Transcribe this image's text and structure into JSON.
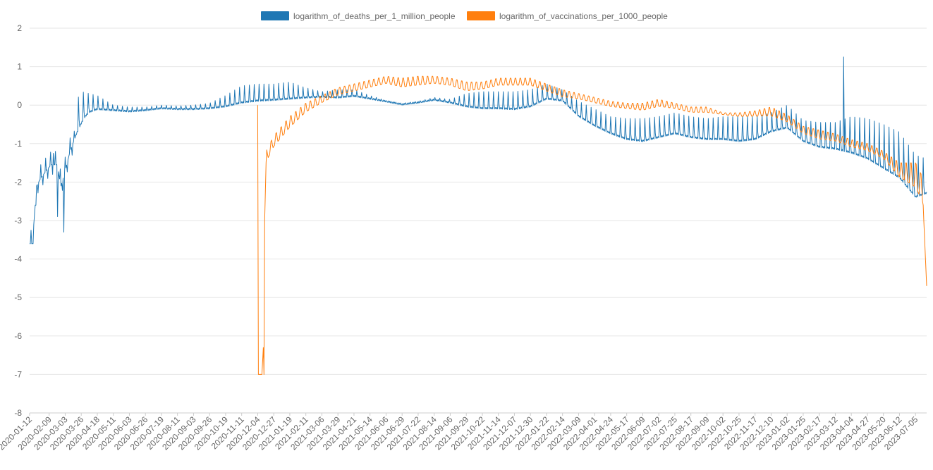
{
  "chart_data": {
    "type": "line",
    "title": "",
    "xlabel": "",
    "ylabel": "",
    "ylim": [
      -8,
      2
    ],
    "yticks": [
      2,
      1,
      0,
      -1,
      -2,
      -3,
      -4,
      -5,
      -6,
      -7,
      -8
    ],
    "grid": "horizontal",
    "legend_position": "top-center",
    "xlim": [
      "2020-01-12",
      "2023-07-21"
    ],
    "x_tick_labels": [
      "2020-01-12",
      "2020-02-09",
      "2020-03-03",
      "2020-03-26",
      "2020-04-18",
      "2020-05-11",
      "2020-06-03",
      "2020-06-26",
      "2020-07-19",
      "2020-08-11",
      "2020-09-03",
      "2020-09-26",
      "2020-10-19",
      "2020-11-11",
      "2020-12-04",
      "2020-12-27",
      "2021-01-19",
      "2021-02-11",
      "2021-03-06",
      "2021-03-29",
      "2021-04-21",
      "2021-05-14",
      "2021-06-06",
      "2021-06-29",
      "2021-07-22",
      "2021-08-14",
      "2021-09-06",
      "2021-09-29",
      "2021-10-22",
      "2021-11-14",
      "2021-12-07",
      "2021-12-30",
      "2022-01-22",
      "2022-02-14",
      "2022-03-09",
      "2022-04-01",
      "2022-04-24",
      "2022-05-17",
      "2022-06-09",
      "2022-07-02",
      "2022-07-25",
      "2022-08-17",
      "2022-09-09",
      "2022-10-02",
      "2022-10-25",
      "2022-11-17",
      "2022-12-10",
      "2023-01-02",
      "2023-01-25",
      "2023-02-17",
      "2023-03-12",
      "2023-04-04",
      "2023-04-27",
      "2023-05-20",
      "2023-06-12",
      "2023-07-05"
    ],
    "series": [
      {
        "name": "logarithm_of_deaths_per_1_million_people",
        "color": "#1f77b4",
        "baseline_points": [
          [
            "2020-01-12",
            -3.6
          ],
          [
            "2020-01-16",
            -3.6
          ],
          [
            "2020-01-22",
            -2.1
          ],
          [
            "2020-01-28",
            -1.9
          ],
          [
            "2020-02-05",
            -1.7
          ],
          [
            "2020-02-12",
            -1.55
          ],
          [
            "2020-02-20",
            -1.55
          ],
          [
            "2020-02-26",
            -2.1
          ],
          [
            "2020-03-03",
            -1.7
          ],
          [
            "2020-03-10",
            -1.2
          ],
          [
            "2020-03-16",
            -0.9
          ],
          [
            "2020-03-23",
            -0.6
          ],
          [
            "2020-03-30",
            -0.35
          ],
          [
            "2020-04-06",
            -0.2
          ],
          [
            "2020-04-18",
            -0.12
          ],
          [
            "2020-05-11",
            -0.15
          ],
          [
            "2020-06-03",
            -0.18
          ],
          [
            "2020-06-26",
            -0.15
          ],
          [
            "2020-07-19",
            -0.1
          ],
          [
            "2020-08-11",
            -0.12
          ],
          [
            "2020-09-03",
            -0.12
          ],
          [
            "2020-09-26",
            -0.1
          ],
          [
            "2020-10-19",
            -0.05
          ],
          [
            "2020-11-11",
            0.05
          ],
          [
            "2020-12-04",
            0.1
          ],
          [
            "2020-12-27",
            0.12
          ],
          [
            "2021-01-19",
            0.15
          ],
          [
            "2021-02-11",
            0.18
          ],
          [
            "2021-03-06",
            0.2
          ],
          [
            "2021-03-29",
            0.18
          ],
          [
            "2021-04-21",
            0.22
          ],
          [
            "2021-05-14",
            0.15
          ],
          [
            "2021-06-06",
            0.08
          ],
          [
            "2021-06-29",
            0.0
          ],
          [
            "2021-07-22",
            0.05
          ],
          [
            "2021-08-14",
            0.12
          ],
          [
            "2021-09-06",
            0.05
          ],
          [
            "2021-09-29",
            -0.05
          ],
          [
            "2021-10-22",
            -0.1
          ],
          [
            "2021-11-14",
            -0.1
          ],
          [
            "2021-12-07",
            -0.12
          ],
          [
            "2021-12-30",
            -0.05
          ],
          [
            "2022-01-22",
            0.15
          ],
          [
            "2022-02-14",
            0.1
          ],
          [
            "2022-03-09",
            -0.3
          ],
          [
            "2022-04-01",
            -0.55
          ],
          [
            "2022-04-24",
            -0.75
          ],
          [
            "2022-05-17",
            -0.9
          ],
          [
            "2022-06-09",
            -0.95
          ],
          [
            "2022-07-02",
            -0.85
          ],
          [
            "2022-07-25",
            -0.75
          ],
          [
            "2022-08-17",
            -0.85
          ],
          [
            "2022-09-09",
            -0.9
          ],
          [
            "2022-10-02",
            -0.9
          ],
          [
            "2022-10-25",
            -0.95
          ],
          [
            "2022-11-17",
            -0.9
          ],
          [
            "2022-12-10",
            -0.7
          ],
          [
            "2023-01-02",
            -0.6
          ],
          [
            "2023-01-25",
            -0.95
          ],
          [
            "2023-02-17",
            -1.1
          ],
          [
            "2023-03-12",
            -1.15
          ],
          [
            "2023-04-04",
            -1.25
          ],
          [
            "2023-04-27",
            -1.4
          ],
          [
            "2023-05-20",
            -1.65
          ],
          [
            "2023-06-12",
            -1.9
          ],
          [
            "2023-07-05",
            -2.4
          ],
          [
            "2023-07-21",
            -2.3
          ]
        ],
        "weekly_peak_points": [
          [
            "2020-01-12",
            0
          ],
          [
            "2020-03-16",
            0
          ],
          [
            "2020-03-26",
            0.35
          ],
          [
            "2020-04-18",
            0.25
          ],
          [
            "2020-05-11",
            0.0
          ],
          [
            "2020-06-03",
            -0.05
          ],
          [
            "2020-06-26",
            -0.05
          ],
          [
            "2020-07-19",
            0.0
          ],
          [
            "2020-08-11",
            -0.02
          ],
          [
            "2020-09-03",
            0.0
          ],
          [
            "2020-09-26",
            0.05
          ],
          [
            "2020-10-19",
            0.25
          ],
          [
            "2020-11-11",
            0.5
          ],
          [
            "2020-12-04",
            0.55
          ],
          [
            "2020-12-27",
            0.55
          ],
          [
            "2021-01-19",
            0.6
          ],
          [
            "2021-02-11",
            0.45
          ],
          [
            "2021-03-06",
            0.35
          ],
          [
            "2021-03-29",
            0.4
          ],
          [
            "2021-04-21",
            0.4
          ],
          [
            "2021-05-14",
            0.25
          ],
          [
            "2021-06-06",
            0.12
          ],
          [
            "2021-06-29",
            0.05
          ],
          [
            "2021-07-22",
            0.1
          ],
          [
            "2021-08-14",
            0.2
          ],
          [
            "2021-09-06",
            0.15
          ],
          [
            "2021-09-29",
            0.3
          ],
          [
            "2021-10-22",
            0.35
          ],
          [
            "2021-11-14",
            0.35
          ],
          [
            "2021-12-07",
            0.35
          ],
          [
            "2021-12-30",
            0.4
          ],
          [
            "2022-01-22",
            0.55
          ],
          [
            "2022-02-14",
            0.4
          ],
          [
            "2022-03-09",
            0.1
          ],
          [
            "2022-04-01",
            -0.1
          ],
          [
            "2022-04-24",
            -0.3
          ],
          [
            "2022-05-17",
            -0.35
          ],
          [
            "2022-06-09",
            -0.35
          ],
          [
            "2022-07-02",
            -0.3
          ],
          [
            "2022-07-25",
            -0.2
          ],
          [
            "2022-08-17",
            -0.3
          ],
          [
            "2022-09-09",
            -0.35
          ],
          [
            "2022-10-02",
            -0.3
          ],
          [
            "2022-10-25",
            -0.3
          ],
          [
            "2022-11-17",
            -0.3
          ],
          [
            "2022-12-10",
            -0.2
          ],
          [
            "2023-01-02",
            0.0
          ],
          [
            "2023-01-25",
            -0.4
          ],
          [
            "2023-02-17",
            -0.45
          ],
          [
            "2023-03-12",
            -0.45
          ],
          [
            "2023-04-04",
            -0.3
          ],
          [
            "2023-04-27",
            -0.35
          ],
          [
            "2023-05-20",
            -0.5
          ],
          [
            "2023-06-12",
            -0.7
          ],
          [
            "2023-07-05",
            -1.3
          ],
          [
            "2023-07-21",
            -1.4
          ]
        ],
        "spikes": [
          [
            "2020-02-15",
            -1.25
          ],
          [
            "2020-02-21",
            -2.9
          ],
          [
            "2020-03-01",
            -3.3
          ],
          [
            "2020-01-21",
            -2.6
          ],
          [
            "2023-03-24",
            1.25
          ]
        ]
      },
      {
        "name": "logarithm_of_vaccinations_per_1000_people",
        "color": "#ff7f0e",
        "start": "2020-12-04",
        "baseline_points": [
          [
            "2020-12-04",
            0.0
          ],
          [
            "2020-12-05",
            -7.0
          ],
          [
            "2020-12-10",
            -7.0
          ],
          [
            "2020-12-12",
            -6.3
          ],
          [
            "2020-12-13",
            -7.0
          ],
          [
            "2020-12-14",
            -3.0
          ],
          [
            "2020-12-16",
            -1.5
          ],
          [
            "2020-12-27",
            -1.1
          ],
          [
            "2021-01-19",
            -0.6
          ],
          [
            "2021-02-11",
            -0.2
          ],
          [
            "2021-03-06",
            0.05
          ],
          [
            "2021-03-29",
            0.25
          ],
          [
            "2021-04-21",
            0.35
          ],
          [
            "2021-05-14",
            0.45
          ],
          [
            "2021-06-06",
            0.55
          ],
          [
            "2021-06-29",
            0.45
          ],
          [
            "2021-07-22",
            0.5
          ],
          [
            "2021-08-14",
            0.55
          ],
          [
            "2021-09-06",
            0.5
          ],
          [
            "2021-09-29",
            0.35
          ],
          [
            "2021-10-22",
            0.4
          ],
          [
            "2021-11-14",
            0.5
          ],
          [
            "2021-12-07",
            0.5
          ],
          [
            "2021-12-30",
            0.5
          ],
          [
            "2022-01-22",
            0.35
          ],
          [
            "2022-02-14",
            0.2
          ],
          [
            "2022-03-09",
            0.15
          ],
          [
            "2022-04-01",
            0.05
          ],
          [
            "2022-04-24",
            -0.05
          ],
          [
            "2022-05-17",
            -0.1
          ],
          [
            "2022-06-09",
            -0.15
          ],
          [
            "2022-07-02",
            -0.05
          ],
          [
            "2022-07-25",
            -0.1
          ],
          [
            "2022-08-17",
            -0.2
          ],
          [
            "2022-09-09",
            -0.2
          ],
          [
            "2022-10-02",
            -0.25
          ],
          [
            "2022-10-25",
            -0.3
          ],
          [
            "2022-11-17",
            -0.3
          ],
          [
            "2022-12-10",
            -0.3
          ],
          [
            "2023-01-02",
            -0.45
          ],
          [
            "2023-01-25",
            -0.75
          ],
          [
            "2023-02-17",
            -0.9
          ],
          [
            "2023-03-12",
            -0.95
          ],
          [
            "2023-04-04",
            -1.1
          ],
          [
            "2023-04-27",
            -1.2
          ],
          [
            "2023-05-20",
            -1.4
          ],
          [
            "2023-06-12",
            -1.9
          ],
          [
            "2023-07-05",
            -2.2
          ],
          [
            "2023-07-16",
            -2.6
          ],
          [
            "2023-07-21",
            -4.7
          ]
        ],
        "weekly_peak_points": [
          [
            "2020-12-16",
            -1.2
          ],
          [
            "2020-12-27",
            -0.8
          ],
          [
            "2021-01-19",
            -0.3
          ],
          [
            "2021-02-11",
            0.05
          ],
          [
            "2021-03-06",
            0.25
          ],
          [
            "2021-03-29",
            0.45
          ],
          [
            "2021-04-21",
            0.55
          ],
          [
            "2021-05-14",
            0.65
          ],
          [
            "2021-06-06",
            0.75
          ],
          [
            "2021-06-29",
            0.7
          ],
          [
            "2021-07-22",
            0.75
          ],
          [
            "2021-08-14",
            0.75
          ],
          [
            "2021-09-06",
            0.7
          ],
          [
            "2021-09-29",
            0.6
          ],
          [
            "2021-10-22",
            0.6
          ],
          [
            "2021-11-14",
            0.7
          ],
          [
            "2021-12-07",
            0.7
          ],
          [
            "2021-12-30",
            0.7
          ],
          [
            "2022-01-22",
            0.55
          ],
          [
            "2022-02-14",
            0.4
          ],
          [
            "2022-03-09",
            0.3
          ],
          [
            "2022-04-01",
            0.2
          ],
          [
            "2022-04-24",
            0.1
          ],
          [
            "2022-05-17",
            0.05
          ],
          [
            "2022-06-09",
            0.05
          ],
          [
            "2022-07-02",
            0.15
          ],
          [
            "2022-07-25",
            0.05
          ],
          [
            "2022-08-17",
            -0.05
          ],
          [
            "2022-09-09",
            -0.05
          ],
          [
            "2022-10-02",
            -0.2
          ],
          [
            "2022-10-25",
            -0.2
          ],
          [
            "2022-11-17",
            -0.15
          ],
          [
            "2022-12-10",
            -0.05
          ],
          [
            "2023-01-02",
            -0.25
          ],
          [
            "2023-01-25",
            -0.55
          ],
          [
            "2023-02-17",
            -0.65
          ],
          [
            "2023-03-12",
            -0.75
          ],
          [
            "2023-04-04",
            -0.9
          ],
          [
            "2023-04-27",
            -1.0
          ],
          [
            "2023-05-20",
            -1.2
          ],
          [
            "2023-06-12",
            -1.5
          ],
          [
            "2023-07-05",
            -1.5
          ],
          [
            "2023-07-16",
            -1.9
          ]
        ]
      }
    ]
  }
}
